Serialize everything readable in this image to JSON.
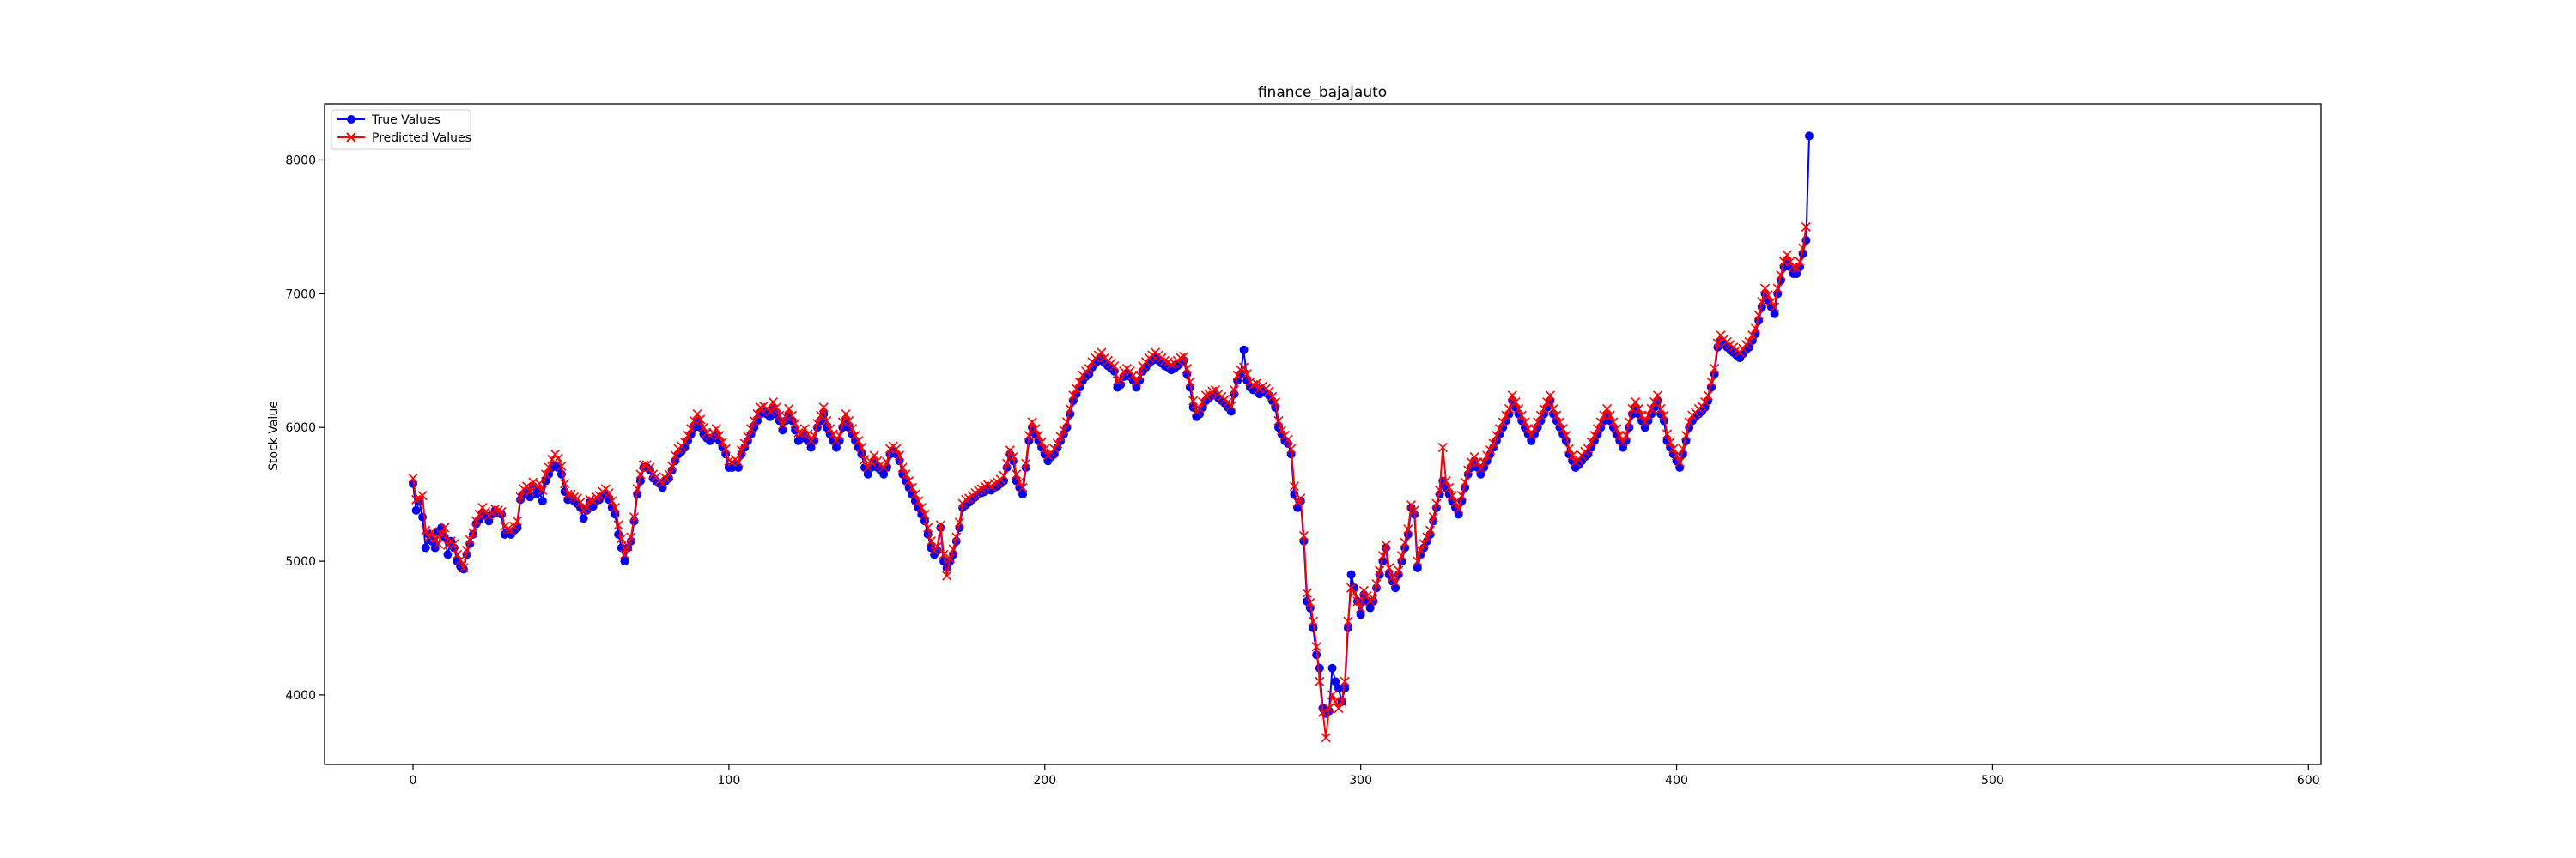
{
  "chart_data": {
    "type": "line",
    "title": "finance_bajajauto",
    "xlabel": "",
    "ylabel": "Stock Value",
    "xlim": [
      -28,
      604
    ],
    "ylim": [
      3480,
      8420
    ],
    "x_ticks": [
      0,
      100,
      200,
      300,
      400,
      500,
      600
    ],
    "y_ticks": [
      4000,
      5000,
      6000,
      7000,
      8000
    ],
    "grid": false,
    "legend_position": "top-left",
    "series": [
      {
        "name": "True Values",
        "color": "#0000ff",
        "marker": "circle",
        "x_start": 0,
        "x_step": 1,
        "values": [
          5580,
          5380,
          5450,
          5330,
          5100,
          5200,
          5150,
          5100,
          5220,
          5250,
          5180,
          5050,
          5150,
          5100,
          5000,
          4960,
          4940,
          5050,
          5130,
          5200,
          5280,
          5310,
          5360,
          5340,
          5300,
          5350,
          5380,
          5360,
          5350,
          5200,
          5220,
          5200,
          5230,
          5250,
          5460,
          5500,
          5520,
          5480,
          5560,
          5500,
          5520,
          5450,
          5600,
          5650,
          5700,
          5720,
          5700,
          5650,
          5520,
          5460,
          5480,
          5450,
          5430,
          5400,
          5320,
          5380,
          5440,
          5410,
          5450,
          5460,
          5490,
          5500,
          5460,
          5400,
          5350,
          5200,
          5100,
          5000,
          5100,
          5150,
          5300,
          5500,
          5600,
          5700,
          5700,
          5680,
          5620,
          5600,
          5580,
          5550,
          5600,
          5620,
          5680,
          5750,
          5800,
          5820,
          5850,
          5900,
          5950,
          6000,
          6050,
          6000,
          5950,
          5920,
          5900,
          5920,
          5950,
          5900,
          5850,
          5800,
          5700,
          5700,
          5720,
          5700,
          5800,
          5850,
          5900,
          5950,
          6000,
          6050,
          6100,
          6120,
          6100,
          6080,
          6150,
          6100,
          6050,
          5980,
          6050,
          6100,
          6050,
          5980,
          5900,
          5920,
          5950,
          5900,
          5850,
          5900,
          6000,
          6050,
          6100,
          6000,
          5950,
          5900,
          5850,
          5900,
          6000,
          6050,
          6000,
          5950,
          5900,
          5850,
          5800,
          5700,
          5650,
          5700,
          5750,
          5700,
          5680,
          5650,
          5700,
          5800,
          5820,
          5800,
          5750,
          5650,
          5600,
          5550,
          5500,
          5450,
          5400,
          5350,
          5300,
          5200,
          5100,
          5050,
          5080,
          5250,
          5000,
          4950,
          5000,
          5050,
          5150,
          5250,
          5400,
          5420,
          5440,
          5460,
          5480,
          5500,
          5510,
          5520,
          5540,
          5530,
          5550,
          5560,
          5580,
          5600,
          5700,
          5800,
          5750,
          5600,
          5550,
          5500,
          5700,
          5900,
          6000,
          5950,
          5900,
          5850,
          5800,
          5750,
          5780,
          5800,
          5850,
          5900,
          5950,
          6000,
          6100,
          6200,
          6250,
          6300,
          6350,
          6380,
          6400,
          6450,
          6480,
          6500,
          6520,
          6480,
          6460,
          6440,
          6420,
          6300,
          6320,
          6380,
          6400,
          6380,
          6350,
          6300,
          6350,
          6420,
          6450,
          6480,
          6500,
          6520,
          6500,
          6480,
          6460,
          6450,
          6430,
          6440,
          6460,
          6480,
          6500,
          6400,
          6300,
          6150,
          6080,
          6100,
          6150,
          6200,
          6220,
          6240,
          6250,
          6220,
          6200,
          6180,
          6150,
          6120,
          6250,
          6350,
          6400,
          6580,
          6350,
          6300,
          6280,
          6300,
          6250,
          6280,
          6260,
          6240,
          6200,
          6150,
          6000,
          5950,
          5900,
          5880,
          5800,
          5500,
          5400,
          5450,
          5150,
          4700,
          4650,
          4500,
          4300,
          4200,
          3900,
          3860,
          3880,
          4200,
          4100,
          4050,
          3950,
          4050,
          4500,
          4900,
          4800,
          4700,
          4600,
          4750,
          4700,
          4650,
          4700,
          4800,
          4900,
          5000,
          5100,
          4900,
          4850,
          4800,
          4900,
          5000,
          5100,
          5200,
          5400,
          5350,
          4950,
          5050,
          5100,
          5150,
          5200,
          5300,
          5400,
          5500,
          5600,
          5550,
          5500,
          5450,
          5400,
          5350,
          5450,
          5550,
          5650,
          5700,
          5750,
          5700,
          5650,
          5700,
          5750,
          5800,
          5850,
          5900,
          5950,
          6000,
          6050,
          6100,
          6200,
          6150,
          6100,
          6050,
          6000,
          5950,
          5900,
          5950,
          6000,
          6050,
          6100,
          6150,
          6200,
          6100,
          6050,
          6000,
          5950,
          5900,
          5800,
          5750,
          5700,
          5720,
          5750,
          5780,
          5800,
          5850,
          5900,
          5950,
          6000,
          6050,
          6100,
          6050,
          6000,
          5950,
          5900,
          5850,
          5900,
          6000,
          6100,
          6150,
          6100,
          6050,
          6000,
          6050,
          6100,
          6150,
          6200,
          6100,
          6050,
          5900,
          5850,
          5800,
          5750,
          5700,
          5800,
          5900,
          6000,
          6050,
          6080,
          6100,
          6120,
          6150,
          6200,
          6300,
          6400,
          6600,
          6650,
          6620,
          6600,
          6580,
          6560,
          6540,
          6520,
          6550,
          6580,
          6600,
          6650,
          6700,
          6800,
          6900,
          7000,
          6950,
          6900,
          6850,
          7000,
          7100,
          7200,
          7250,
          7200,
          7150,
          7150,
          7200,
          7300,
          7400,
          8180
        ]
      },
      {
        "name": "Predicted Values",
        "color": "#ff0000",
        "marker": "x",
        "x_start": 0,
        "x_step": 1,
        "values": [
          5620,
          5460,
          5470,
          5490,
          5230,
          5180,
          5220,
          5170,
          5130,
          5200,
          5250,
          5120,
          5150,
          5130,
          5050,
          5010,
          4950,
          5080,
          5160,
          5210,
          5300,
          5350,
          5400,
          5370,
          5340,
          5360,
          5390,
          5380,
          5370,
          5260,
          5240,
          5230,
          5260,
          5300,
          5480,
          5540,
          5560,
          5520,
          5590,
          5560,
          5580,
          5530,
          5650,
          5700,
          5760,
          5800,
          5770,
          5710,
          5580,
          5500,
          5500,
          5480,
          5470,
          5440,
          5380,
          5400,
          5460,
          5450,
          5480,
          5490,
          5520,
          5540,
          5510,
          5450,
          5400,
          5270,
          5170,
          5050,
          5110,
          5180,
          5330,
          5540,
          5650,
          5720,
          5720,
          5700,
          5650,
          5630,
          5600,
          5580,
          5620,
          5650,
          5710,
          5790,
          5840,
          5860,
          5890,
          5940,
          5990,
          6050,
          6100,
          6060,
          6000,
          5960,
          5940,
          5960,
          5990,
          5940,
          5890,
          5840,
          5750,
          5740,
          5760,
          5740,
          5830,
          5880,
          5930,
          5990,
          6050,
          6100,
          6150,
          6160,
          6140,
          6120,
          6190,
          6150,
          6090,
          6020,
          6080,
          6140,
          6090,
          6030,
          5960,
          5960,
          5990,
          5950,
          5900,
          5940,
          6030,
          6090,
          6150,
          6050,
          5990,
          5950,
          5900,
          5940,
          6040,
          6100,
          6050,
          5990,
          5940,
          5900,
          5850,
          5760,
          5700,
          5740,
          5790,
          5750,
          5720,
          5700,
          5740,
          5840,
          5860,
          5840,
          5790,
          5700,
          5650,
          5600,
          5550,
          5500,
          5450,
          5400,
          5350,
          5250,
          5150,
          5080,
          5110,
          5270,
          5050,
          4890,
          5020,
          5090,
          5180,
          5290,
          5430,
          5460,
          5470,
          5490,
          5510,
          5530,
          5540,
          5560,
          5570,
          5560,
          5580,
          5590,
          5610,
          5640,
          5730,
          5830,
          5780,
          5650,
          5590,
          5550,
          5730,
          5940,
          6040,
          5990,
          5940,
          5890,
          5840,
          5790,
          5810,
          5840,
          5880,
          5930,
          5980,
          6040,
          6140,
          6240,
          6290,
          6340,
          6390,
          6420,
          6440,
          6490,
          6520,
          6540,
          6560,
          6520,
          6500,
          6480,
          6460,
          6350,
          6360,
          6420,
          6440,
          6420,
          6390,
          6340,
          6390,
          6460,
          6490,
          6520,
          6540,
          6560,
          6540,
          6520,
          6500,
          6490,
          6470,
          6480,
          6500,
          6520,
          6530,
          6440,
          6340,
          6200,
          6120,
          6140,
          6190,
          6240,
          6250,
          6270,
          6280,
          6250,
          6230,
          6210,
          6190,
          6160,
          6280,
          6390,
          6430,
          6450,
          6400,
          6340,
          6320,
          6330,
          6290,
          6310,
          6290,
          6270,
          6230,
          6190,
          6050,
          5980,
          5940,
          5910,
          5840,
          5560,
          5440,
          5470,
          5190,
          4760,
          4690,
          4550,
          4360,
          4100,
          3870,
          3680,
          3900,
          4000,
          3950,
          3900,
          3950,
          4100,
          4550,
          4800,
          4760,
          4700,
          4650,
          4780,
          4740,
          4700,
          4720,
          4830,
          4930,
          5040,
          5120,
          4950,
          4880,
          4840,
          4930,
          5040,
          5140,
          5240,
          5420,
          5380,
          5000,
          5080,
          5130,
          5180,
          5230,
          5330,
          5430,
          5530,
          5850,
          5600,
          5550,
          5490,
          5440,
          5390,
          5490,
          5590,
          5680,
          5740,
          5780,
          5740,
          5690,
          5740,
          5790,
          5830,
          5880,
          5940,
          5990,
          6040,
          6090,
          6140,
          6240,
          6190,
          6140,
          6090,
          6040,
          5990,
          5940,
          5990,
          6040,
          6090,
          6140,
          6190,
          6240,
          6140,
          6090,
          6040,
          5990,
          5940,
          5840,
          5790,
          5740,
          5760,
          5790,
          5820,
          5840,
          5890,
          5940,
          5990,
          6040,
          6090,
          6140,
          6090,
          6040,
          5990,
          5940,
          5890,
          5940,
          6040,
          6140,
          6190,
          6140,
          6090,
          6040,
          6090,
          6140,
          6190,
          6240,
          6140,
          6090,
          5950,
          5890,
          5840,
          5790,
          5740,
          5840,
          5940,
          6040,
          6090,
          6110,
          6140,
          6160,
          6190,
          6240,
          6340,
          6440,
          6630,
          6690,
          6660,
          6640,
          6620,
          6600,
          6580,
          6560,
          6590,
          6620,
          6640,
          6690,
          6740,
          6840,
          6940,
          7040,
          6990,
          6940,
          6900,
          7040,
          7140,
          7240,
          7290,
          7240,
          7200,
          7190,
          7240,
          7340,
          7500
        ]
      }
    ]
  }
}
